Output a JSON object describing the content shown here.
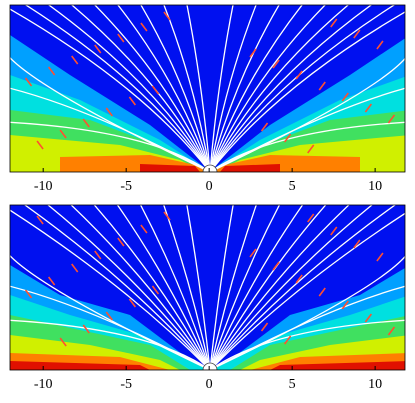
{
  "chart_data": [
    {
      "type": "field",
      "xlim": [
        -12,
        11.8
      ],
      "xticks": [
        -10,
        -5,
        0,
        5,
        10
      ]
    },
    {
      "type": "field",
      "xlim": [
        -12,
        11.8
      ],
      "xticks": [
        -10,
        -5,
        0,
        5,
        10
      ]
    }
  ]
}
